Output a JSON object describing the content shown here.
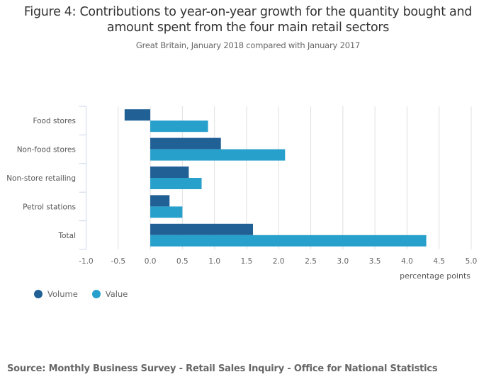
{
  "chart_data": {
    "type": "bar",
    "orientation": "horizontal",
    "title": "Figure 4: Contributions to year-on-year growth for the quantity bought and amount spent from the four main retail sectors",
    "title_lines": [
      "Figure 4: Contributions to year-on-year growth for the quantity bought and",
      "amount spent from the four main retail sectors"
    ],
    "subtitle": "Great Britain, January 2018 compared with January 2017",
    "categories": [
      "Food stores",
      "Non-food stores",
      "Non-store retailing",
      "Petrol stations",
      "Total"
    ],
    "series": [
      {
        "name": "Volume",
        "color": "#206095",
        "values": [
          -0.4,
          1.1,
          0.6,
          0.3,
          1.6
        ]
      },
      {
        "name": "Value",
        "color": "#27a0cc",
        "values": [
          0.9,
          2.1,
          0.8,
          0.5,
          4.3
        ]
      }
    ],
    "xlabel": "percentage points",
    "ylabel": "",
    "xlim": [
      -1.0,
      5.0
    ],
    "xticks": [
      -1.0,
      -0.5,
      0.0,
      0.5,
      1.0,
      1.5,
      2.0,
      2.5,
      3.0,
      3.5,
      4.0,
      4.5,
      5.0
    ],
    "xtick_labels": [
      "-1.0",
      "-0.5",
      "0.0",
      "0.5",
      "1.0",
      "1.5",
      "2.0",
      "2.5",
      "3.0",
      "3.5",
      "4.0",
      "4.5",
      "5.0"
    ],
    "grid": true,
    "legend_position": "bottom-left"
  },
  "source": "Source: Monthly Business Survey - Retail Sales Inquiry - Office for National Statistics"
}
